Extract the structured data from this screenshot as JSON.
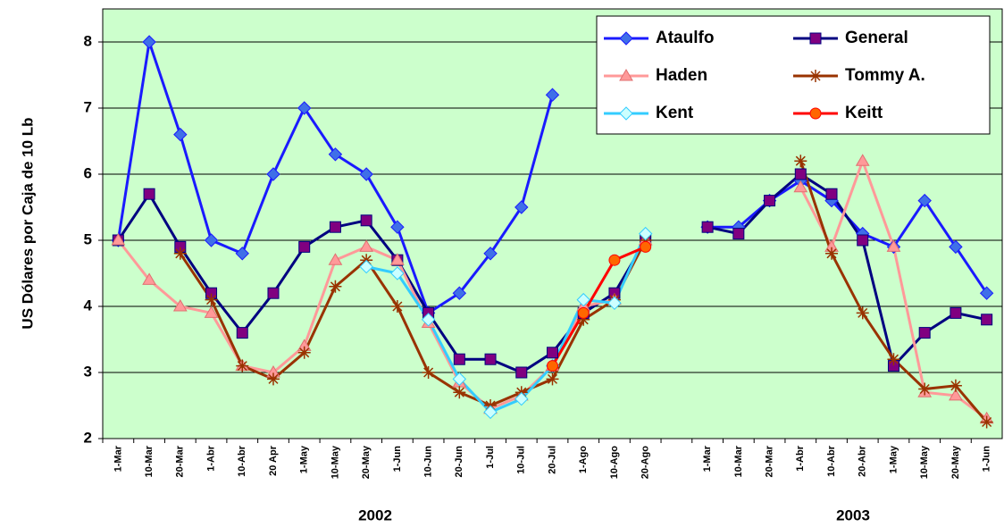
{
  "chart_data": {
    "type": "line",
    "y_label": "US Dólares por Caja de 10 Lb",
    "group_labels": [
      "2002",
      "2003"
    ],
    "categories": [
      "1-Mar",
      "10-Mar",
      "20-Mar",
      "1-Abr",
      "10-Abr",
      "20 Apr",
      "1-May",
      "10-May",
      "20-May",
      "1-Jun",
      "10-Jun",
      "20-Jun",
      "1-Jul",
      "10-Jul",
      "20-Jul",
      "1-Ago",
      "10-Ago",
      "20-Ago",
      null,
      "1-Mar",
      "10-Mar",
      "20-Mar",
      "1-Abr",
      "10-Abr",
      "20-Abr",
      "1-May",
      "10-May",
      "20-May",
      "1-Jun"
    ],
    "ylim": [
      2,
      8.5
    ],
    "yticks": [
      2,
      3,
      4,
      5,
      6,
      7,
      8
    ],
    "grid": true,
    "legend": "top-right",
    "background": "#ccffcc",
    "series": [
      {
        "name": "Ataulfo",
        "color": "#1a1aff",
        "marker": "diamond",
        "marker_color": "#3f6fe8",
        "values": [
          5.0,
          8.0,
          6.6,
          5.0,
          4.8,
          6.0,
          7.0,
          6.3,
          6.0,
          5.2,
          3.9,
          4.2,
          4.8,
          5.5,
          7.2,
          null,
          null,
          null,
          null,
          5.2,
          5.2,
          5.6,
          5.9,
          5.6,
          5.1,
          4.9,
          5.6,
          4.9,
          4.2
        ]
      },
      {
        "name": "General",
        "color": "#000080",
        "marker": "square",
        "marker_color": "#800080",
        "values": [
          5.0,
          5.7,
          4.9,
          4.2,
          3.6,
          4.2,
          4.9,
          5.2,
          5.3,
          4.7,
          3.9,
          3.2,
          3.2,
          3.0,
          3.3,
          3.9,
          4.2,
          5.0,
          null,
          5.2,
          5.1,
          5.6,
          6.0,
          5.7,
          5.0,
          3.1,
          3.6,
          3.9,
          3.8
        ]
      },
      {
        "name": "Haden",
        "color": "#ff9999",
        "marker": "triangle",
        "marker_color": "#ff9999",
        "values": [
          5.0,
          4.4,
          4.0,
          3.9,
          3.1,
          3.0,
          3.4,
          4.7,
          4.9,
          4.7,
          3.75,
          2.85,
          2.45,
          2.65,
          3.1,
          4.0,
          4.1,
          5.0,
          null,
          null,
          null,
          null,
          5.8,
          4.9,
          6.2,
          4.9,
          2.7,
          2.65,
          2.3
        ]
      },
      {
        "name": "Tommy A.",
        "color": "#993300",
        "marker": "star",
        "marker_color": "#993300",
        "values": [
          null,
          null,
          4.8,
          4.1,
          3.1,
          2.9,
          3.3,
          4.3,
          4.7,
          4.0,
          3.0,
          2.7,
          2.5,
          2.7,
          2.9,
          3.8,
          4.1,
          5.0,
          null,
          null,
          null,
          null,
          6.2,
          4.8,
          3.9,
          3.2,
          2.75,
          2.8,
          2.25
        ]
      },
      {
        "name": "Kent",
        "color": "#33ccff",
        "marker": "diamond",
        "marker_color": "#ccffff",
        "values": [
          null,
          null,
          null,
          null,
          null,
          null,
          null,
          null,
          4.6,
          4.5,
          3.8,
          2.9,
          2.4,
          2.6,
          3.1,
          4.1,
          4.05,
          5.1,
          null,
          null,
          null,
          null,
          null,
          null,
          null,
          null,
          null,
          null,
          null
        ]
      },
      {
        "name": "Keitt",
        "color": "#ff0000",
        "marker": "circle",
        "marker_color": "#ff6600",
        "values": [
          null,
          null,
          null,
          null,
          null,
          null,
          null,
          null,
          null,
          null,
          null,
          null,
          null,
          null,
          3.1,
          3.9,
          4.7,
          4.9,
          null,
          null,
          null,
          null,
          null,
          null,
          null,
          null,
          null,
          null,
          null
        ]
      }
    ]
  }
}
